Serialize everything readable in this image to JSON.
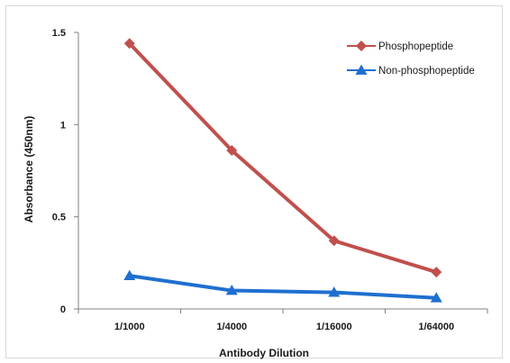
{
  "chart_data": {
    "type": "line",
    "title": "",
    "xlabel": "Antibody Dilution",
    "ylabel": "Absorbance (450nm)",
    "categories": [
      "1/1000",
      "1/4000",
      "1/16000",
      "1/64000"
    ],
    "ylim": [
      0,
      1.5
    ],
    "yticks": [
      0,
      0.5,
      1,
      1.5
    ],
    "ytick_labels": [
      "0",
      "0.5",
      "1",
      "1.5"
    ],
    "grid": false,
    "legend_position": "top-right",
    "series": [
      {
        "name": "Phosphopeptide",
        "values": [
          1.44,
          0.86,
          0.37,
          0.2
        ],
        "color": "#c0504d",
        "marker": "diamond"
      },
      {
        "name": "Non-phosphopeptide",
        "values": [
          0.18,
          0.1,
          0.09,
          0.06
        ],
        "color": "#1f6fd0",
        "marker": "triangle"
      }
    ]
  }
}
